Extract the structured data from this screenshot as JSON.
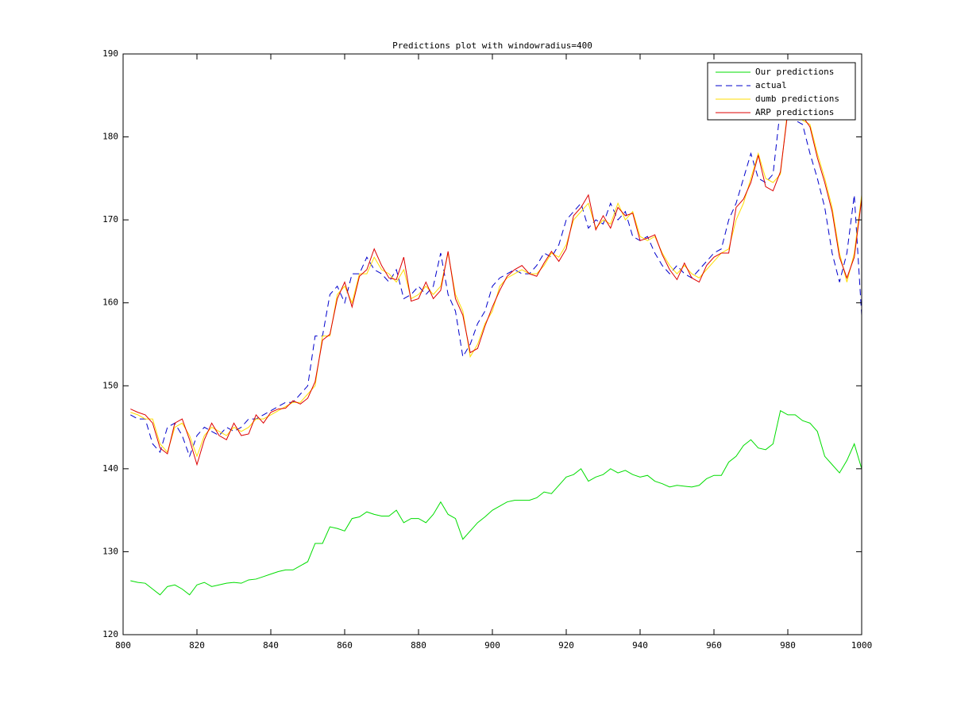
{
  "chart_data": {
    "type": "line",
    "title": "Predictions plot with windowradius=400",
    "xlim": [
      800,
      1000
    ],
    "ylim": [
      120,
      190
    ],
    "xticks": [
      800,
      820,
      840,
      860,
      880,
      900,
      920,
      940,
      960,
      980,
      1000
    ],
    "yticks": [
      120,
      130,
      140,
      150,
      160,
      170,
      180,
      190
    ],
    "legend": "northeast",
    "x": [
      802,
      804,
      806,
      808,
      810,
      812,
      814,
      816,
      818,
      820,
      822,
      824,
      826,
      828,
      830,
      832,
      834,
      836,
      838,
      840,
      842,
      844,
      846,
      848,
      850,
      852,
      854,
      856,
      858,
      860,
      862,
      864,
      866,
      868,
      870,
      872,
      874,
      876,
      878,
      880,
      882,
      884,
      886,
      888,
      890,
      892,
      894,
      896,
      898,
      900,
      902,
      904,
      906,
      908,
      910,
      912,
      914,
      916,
      918,
      920,
      922,
      924,
      926,
      928,
      930,
      932,
      934,
      936,
      938,
      940,
      942,
      944,
      946,
      948,
      950,
      952,
      954,
      956,
      958,
      960,
      962,
      964,
      966,
      968,
      970,
      972,
      974,
      976,
      978,
      980,
      982,
      984,
      986,
      988,
      990,
      992,
      994,
      996,
      998,
      1000
    ],
    "series": [
      {
        "name": "Our predictions",
        "color": "#00dd00",
        "style": "solid",
        "values": [
          126.5,
          126.3,
          126.2,
          125.5,
          124.8,
          125.8,
          126,
          125.5,
          124.8,
          126,
          126.3,
          125.8,
          126,
          126.2,
          126.3,
          126.2,
          126.6,
          126.7,
          127,
          127.3,
          127.6,
          127.8,
          127.8,
          128.3,
          128.8,
          131,
          131,
          133,
          132.8,
          132.5,
          134,
          134.2,
          134.8,
          134.5,
          134.3,
          134.3,
          135,
          133.5,
          134,
          134,
          133.5,
          134.5,
          136,
          134.5,
          134,
          131.5,
          132.5,
          133.5,
          134.2,
          135,
          135.5,
          136,
          136.2,
          136.2,
          136.2,
          136.5,
          137.2,
          137,
          138,
          139,
          139.3,
          140,
          138.5,
          139,
          139.3,
          140,
          139.5,
          139.8,
          139.3,
          139,
          139.2,
          138.5,
          138.2,
          137.8,
          138,
          137.9,
          137.8,
          138,
          138.8,
          139.2,
          139.2,
          140.8,
          141.5,
          142.8,
          143.5,
          142.5,
          142.3,
          143,
          147,
          146.5,
          146.5,
          145.8,
          145.5,
          144.5,
          141.5,
          140.5,
          139.5,
          141,
          143,
          140
        ]
      },
      {
        "name": "actual",
        "color": "#0000cc",
        "style": "dashed",
        "values": [
          146.5,
          146,
          146,
          143,
          142,
          145,
          145.5,
          144,
          141.5,
          144,
          145,
          144.5,
          144,
          145,
          144.5,
          145,
          146,
          146,
          146.5,
          147,
          147.5,
          148,
          148,
          149,
          150,
          156,
          156,
          161,
          162,
          160,
          163.5,
          163.5,
          165.5,
          164,
          163.5,
          162.5,
          164,
          160.5,
          161,
          162,
          161,
          162,
          166,
          161,
          159,
          153.5,
          155,
          157.5,
          159,
          162,
          163,
          163.5,
          164,
          163.5,
          163.5,
          164.5,
          166,
          165.5,
          167,
          170,
          171,
          172,
          169,
          170,
          169.5,
          172,
          170,
          171,
          168,
          167.5,
          168,
          166,
          164.5,
          163.5,
          164.5,
          163.5,
          163,
          164,
          165,
          166,
          166.5,
          170,
          172,
          175,
          178,
          175,
          174.5,
          175.5,
          183.5,
          184,
          182,
          181.5,
          178,
          175,
          171.5,
          166,
          162.5,
          166,
          173,
          158.5
        ]
      },
      {
        "name": "dumb predictions",
        "color": "#ffdd00",
        "style": "solid",
        "values": [
          146.8,
          146.5,
          146,
          146,
          143,
          142,
          145,
          145.5,
          144,
          141.5,
          144,
          145,
          144.5,
          144,
          145,
          144.5,
          145,
          146,
          146,
          146.5,
          147,
          147.5,
          148,
          148,
          149,
          150,
          156,
          156,
          161,
          162,
          160,
          163.5,
          163.5,
          165.5,
          164,
          163.5,
          162.5,
          164,
          160.5,
          161,
          162,
          161,
          162,
          166,
          161,
          159,
          153.5,
          155,
          157.5,
          159,
          162,
          163,
          163.5,
          164,
          163.5,
          163.5,
          164.5,
          166,
          165.5,
          167,
          170,
          171,
          172,
          169,
          170,
          169.5,
          172,
          170,
          171,
          168,
          167.5,
          168,
          166,
          164.5,
          163.5,
          164.5,
          163.5,
          163,
          164,
          165,
          166,
          166.5,
          170,
          172,
          175,
          178,
          175,
          174.5,
          175.5,
          183.5,
          184,
          182,
          181.5,
          178,
          175,
          171.5,
          166,
          162.5,
          166,
          173
        ]
      },
      {
        "name": "ARP predictions",
        "color": "#dd0000",
        "style": "solid",
        "values": [
          147.2,
          146.8,
          146.5,
          145.5,
          142.5,
          141.8,
          145.5,
          146,
          143.5,
          140.5,
          143.5,
          145.5,
          144,
          143.5,
          145.5,
          144,
          144.2,
          146.5,
          145.5,
          146.8,
          147.2,
          147.3,
          148.2,
          147.8,
          148.5,
          150.5,
          155.5,
          156.2,
          160.5,
          162.5,
          159.5,
          163.2,
          164,
          166.5,
          164.5,
          163,
          162.8,
          165.5,
          160.2,
          160.5,
          162.5,
          160.5,
          161.5,
          166.2,
          160.5,
          158.5,
          154,
          154.5,
          157.2,
          159.5,
          161.5,
          163.2,
          164,
          164.5,
          163.5,
          163.2,
          164.8,
          166.2,
          165,
          166.5,
          170.5,
          171.5,
          173,
          168.8,
          170.5,
          169,
          171.5,
          170.5,
          170.8,
          167.5,
          167.8,
          168.2,
          165.8,
          164,
          162.8,
          164.8,
          163,
          162.5,
          164.5,
          165.5,
          166,
          166,
          171.5,
          172.5,
          174.5,
          177.8,
          174,
          173.5,
          175.8,
          183,
          184.5,
          182.5,
          181.2,
          177.5,
          174.5,
          171,
          165.5,
          163,
          165.5,
          172.5
        ]
      }
    ]
  }
}
